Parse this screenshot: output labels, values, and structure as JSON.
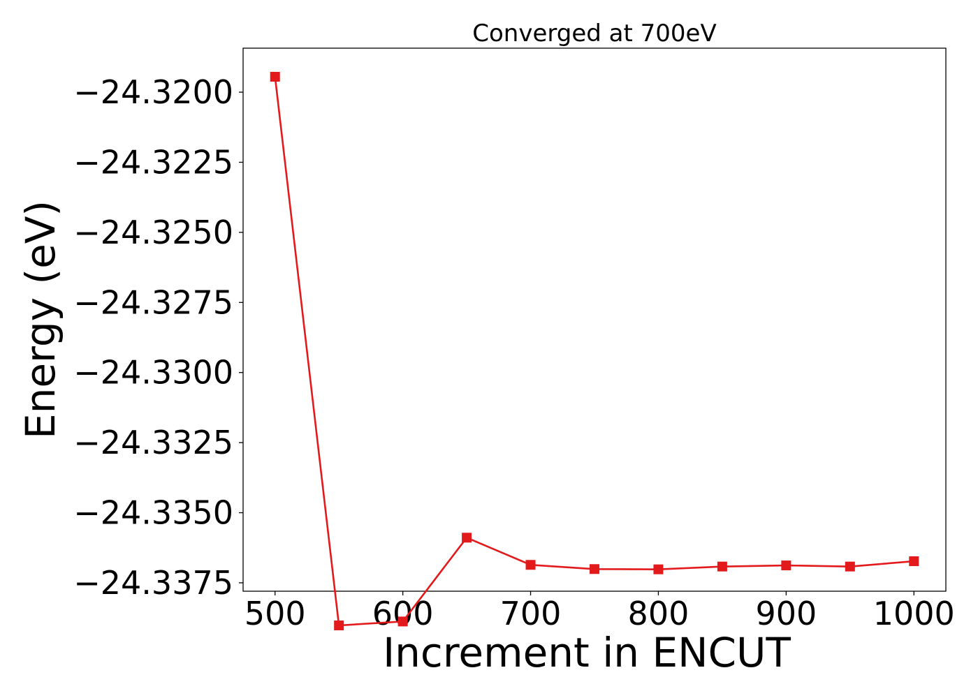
{
  "chart_data": {
    "type": "line",
    "title": "Converged at 700eV",
    "xlabel": "Increment in ENCUT",
    "ylabel": "Energy (eV)",
    "x": [
      500,
      550,
      600,
      650,
      700,
      750,
      800,
      850,
      900,
      950,
      1000
    ],
    "series": [
      {
        "values": [
          -24.31945,
          -24.33902,
          -24.33888,
          -24.33589,
          -24.33686,
          -24.33701,
          -24.33702,
          -24.33692,
          -24.33688,
          -24.33692,
          -24.33673
        ],
        "color": "#e31a1c",
        "marker": "square"
      }
    ],
    "xticks": [
      500,
      600,
      700,
      800,
      900,
      1000
    ],
    "xtick_labels": [
      "500",
      "600",
      "700",
      "800",
      "900",
      "1000"
    ],
    "yticks": [
      -24.32,
      -24.3225,
      -24.325,
      -24.3275,
      -24.33,
      -24.3325,
      -24.335,
      -24.3375
    ],
    "ytick_labels": [
      "−24.3200",
      "−24.3225",
      "−24.3250",
      "−24.3275",
      "−24.3300",
      "−24.3325",
      "−24.3350",
      "−24.3375"
    ],
    "xlim": [
      475,
      1025
    ],
    "ylim": [
      -24.3378,
      -24.31843
    ],
    "grid": false,
    "legend": "none"
  }
}
